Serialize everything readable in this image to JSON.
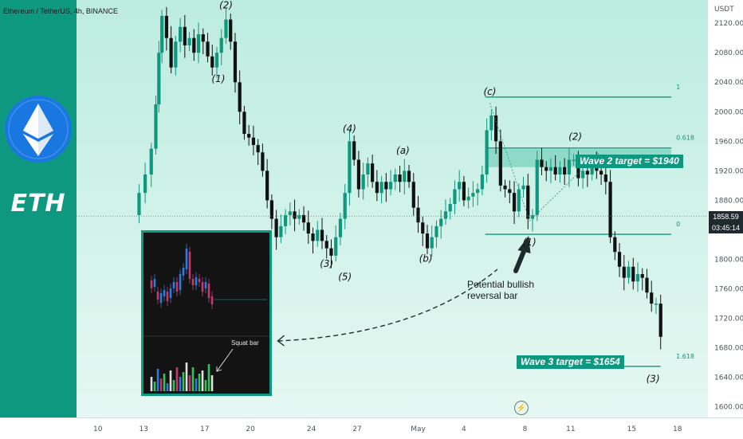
{
  "chart_data": {
    "type": "candlestick",
    "title": "Ethereum / TetherUS, 4h, BINANCE",
    "y_axis": {
      "unit": "USDT",
      "ticks": [
        1600,
        1640,
        1680,
        1720,
        1760,
        1800,
        1840,
        1880,
        1920,
        1960,
        2000,
        2040,
        2080,
        2120
      ],
      "tick_labels": [
        "1600.00",
        "1640.00",
        "1680.00",
        "1720.00",
        "1760.00",
        "1800.00",
        "1840.00",
        "1880.00",
        "1920.00",
        "1960.00",
        "2000.00",
        "2040.00",
        "2080.00",
        "2120.00"
      ],
      "ylim": [
        1590,
        2145
      ]
    },
    "x_axis": {
      "ticks": [
        {
          "label": "10",
          "day": 10
        },
        {
          "label": "13",
          "day": 13
        },
        {
          "label": "17",
          "day": 17
        },
        {
          "label": "20",
          "day": 20
        },
        {
          "label": "24",
          "day": 24
        },
        {
          "label": "27",
          "day": 27
        },
        {
          "label": "May",
          "day": 31
        },
        {
          "label": "4",
          "day": 34
        },
        {
          "label": "8",
          "day": 38
        },
        {
          "label": "11",
          "day": 41
        },
        {
          "label": "15",
          "day": 45
        },
        {
          "label": "18",
          "day": 48
        }
      ],
      "xlim": [
        8.6,
        50
      ]
    },
    "current_price": {
      "value": 1858.59,
      "label": "1858.59",
      "countdown": "03:45:14"
    },
    "price_path": [
      [
        12.3,
        1860
      ],
      [
        12.7,
        1890
      ],
      [
        13.1,
        1915
      ],
      [
        13.5,
        1950
      ],
      [
        13.8,
        2010
      ],
      [
        14.0,
        2080
      ],
      [
        14.2,
        2130
      ],
      [
        14.5,
        2100
      ],
      [
        14.8,
        2060
      ],
      [
        15.1,
        2095
      ],
      [
        15.4,
        2115
      ],
      [
        15.7,
        2090
      ],
      [
        16.0,
        2100
      ],
      [
        16.3,
        2080
      ],
      [
        16.6,
        2105
      ],
      [
        16.9,
        2095
      ],
      [
        17.2,
        2075
      ],
      [
        17.5,
        2060
      ],
      [
        17.8,
        2080
      ],
      [
        18.1,
        2100
      ],
      [
        18.4,
        2125
      ],
      [
        18.7,
        2095
      ],
      [
        19.0,
        2040
      ],
      [
        19.3,
        2000
      ],
      [
        19.6,
        1970
      ],
      [
        19.9,
        1965
      ],
      [
        20.2,
        1955
      ],
      [
        20.5,
        1945
      ],
      [
        20.8,
        1920
      ],
      [
        21.1,
        1880
      ],
      [
        21.4,
        1855
      ],
      [
        21.7,
        1830
      ],
      [
        22.0,
        1845
      ],
      [
        22.3,
        1860
      ],
      [
        22.6,
        1865
      ],
      [
        22.9,
        1855
      ],
      [
        23.2,
        1860
      ],
      [
        23.5,
        1850
      ],
      [
        23.8,
        1835
      ],
      [
        24.1,
        1825
      ],
      [
        24.4,
        1840
      ],
      [
        24.7,
        1825
      ],
      [
        25.0,
        1815
      ],
      [
        25.3,
        1805
      ],
      [
        25.6,
        1830
      ],
      [
        25.9,
        1855
      ],
      [
        26.2,
        1890
      ],
      [
        26.5,
        1960
      ],
      [
        26.8,
        1935
      ],
      [
        27.1,
        1895
      ],
      [
        27.4,
        1915
      ],
      [
        27.7,
        1930
      ],
      [
        28.0,
        1905
      ],
      [
        28.3,
        1890
      ],
      [
        28.6,
        1905
      ],
      [
        28.9,
        1895
      ],
      [
        29.2,
        1905
      ],
      [
        29.5,
        1915
      ],
      [
        29.8,
        1905
      ],
      [
        30.1,
        1920
      ],
      [
        30.4,
        1905
      ],
      [
        30.7,
        1870
      ],
      [
        31.0,
        1850
      ],
      [
        31.3,
        1835
      ],
      [
        31.6,
        1815
      ],
      [
        31.9,
        1830
      ],
      [
        32.2,
        1845
      ],
      [
        32.5,
        1855
      ],
      [
        32.8,
        1865
      ],
      [
        33.1,
        1875
      ],
      [
        33.4,
        1895
      ],
      [
        33.7,
        1905
      ],
      [
        34.0,
        1880
      ],
      [
        34.3,
        1885
      ],
      [
        34.6,
        1890
      ],
      [
        34.9,
        1895
      ],
      [
        35.2,
        1915
      ],
      [
        35.5,
        1975
      ],
      [
        35.8,
        1995
      ],
      [
        36.1,
        1960
      ],
      [
        36.4,
        1900
      ],
      [
        36.7,
        1895
      ],
      [
        37.0,
        1890
      ],
      [
        37.3,
        1865
      ],
      [
        37.6,
        1895
      ],
      [
        37.9,
        1900
      ],
      [
        38.2,
        1855
      ],
      [
        38.5,
        1860
      ],
      [
        38.8,
        1935
      ],
      [
        39.1,
        1925
      ],
      [
        39.4,
        1920
      ],
      [
        39.7,
        1925
      ],
      [
        40.0,
        1915
      ],
      [
        40.3,
        1925
      ],
      [
        40.6,
        1915
      ],
      [
        40.9,
        1935
      ],
      [
        41.2,
        1935
      ],
      [
        41.5,
        1910
      ],
      [
        41.8,
        1920
      ],
      [
        42.1,
        1915
      ],
      [
        42.4,
        1930
      ],
      [
        42.7,
        1920
      ],
      [
        43.0,
        1915
      ],
      [
        43.3,
        1905
      ],
      [
        43.6,
        1830
      ],
      [
        43.9,
        1810
      ],
      [
        44.2,
        1790
      ],
      [
        44.5,
        1775
      ],
      [
        44.8,
        1790
      ],
      [
        45.1,
        1770
      ],
      [
        45.4,
        1780
      ],
      [
        45.7,
        1775
      ],
      [
        46.0,
        1755
      ],
      [
        46.3,
        1740
      ],
      [
        46.6,
        1740
      ],
      [
        46.9,
        1695
      ]
    ],
    "fib_levels": [
      {
        "label": "1",
        "price": 2020
      },
      {
        "label": "0.618",
        "price": 1951
      },
      {
        "label": "0",
        "price": 1834
      },
      {
        "label": "1.618",
        "price": 1655
      }
    ],
    "wave_labels": [
      {
        "label": "(2)",
        "x": 18.4,
        "price": 2140
      },
      {
        "label": "(1)",
        "x": 17.9,
        "price": 2040
      },
      {
        "label": "(4)",
        "x": 26.5,
        "price": 1973
      },
      {
        "label": "(3)",
        "x": 25.0,
        "price": 1790
      },
      {
        "label": "(5)",
        "x": 26.2,
        "price": 1772
      },
      {
        "label": "(a)",
        "x": 30.0,
        "price": 1943
      },
      {
        "label": "(b)",
        "x": 31.5,
        "price": 1797
      },
      {
        "label": "(c)",
        "x": 35.7,
        "price": 2023
      },
      {
        "label": "(1)",
        "x": 38.3,
        "price": 1819
      },
      {
        "label": "(2)",
        "x": 41.3,
        "price": 1962
      },
      {
        "label": "(3)",
        "x": 46.4,
        "price": 1634
      }
    ],
    "annotations": {
      "wave2_target": "Wave 2 target = $1940",
      "wave3_target": "Wave 3 target = $1654",
      "reversal_note_line1": "Potential bullish",
      "reversal_note_line2": "reversal bar",
      "squat_bar": "Squat bar"
    },
    "logo_text": "ETH",
    "grid": false,
    "legend": "none"
  },
  "colors": {
    "accent": "#0e9880",
    "bull_candle": "#0e9880",
    "bear_candle": "#111111",
    "dashed": "#1f2a2c",
    "target_zone": "#5cc6b0"
  },
  "icons": {
    "logo": "ethereum-icon",
    "compare": "lightning-icon"
  }
}
